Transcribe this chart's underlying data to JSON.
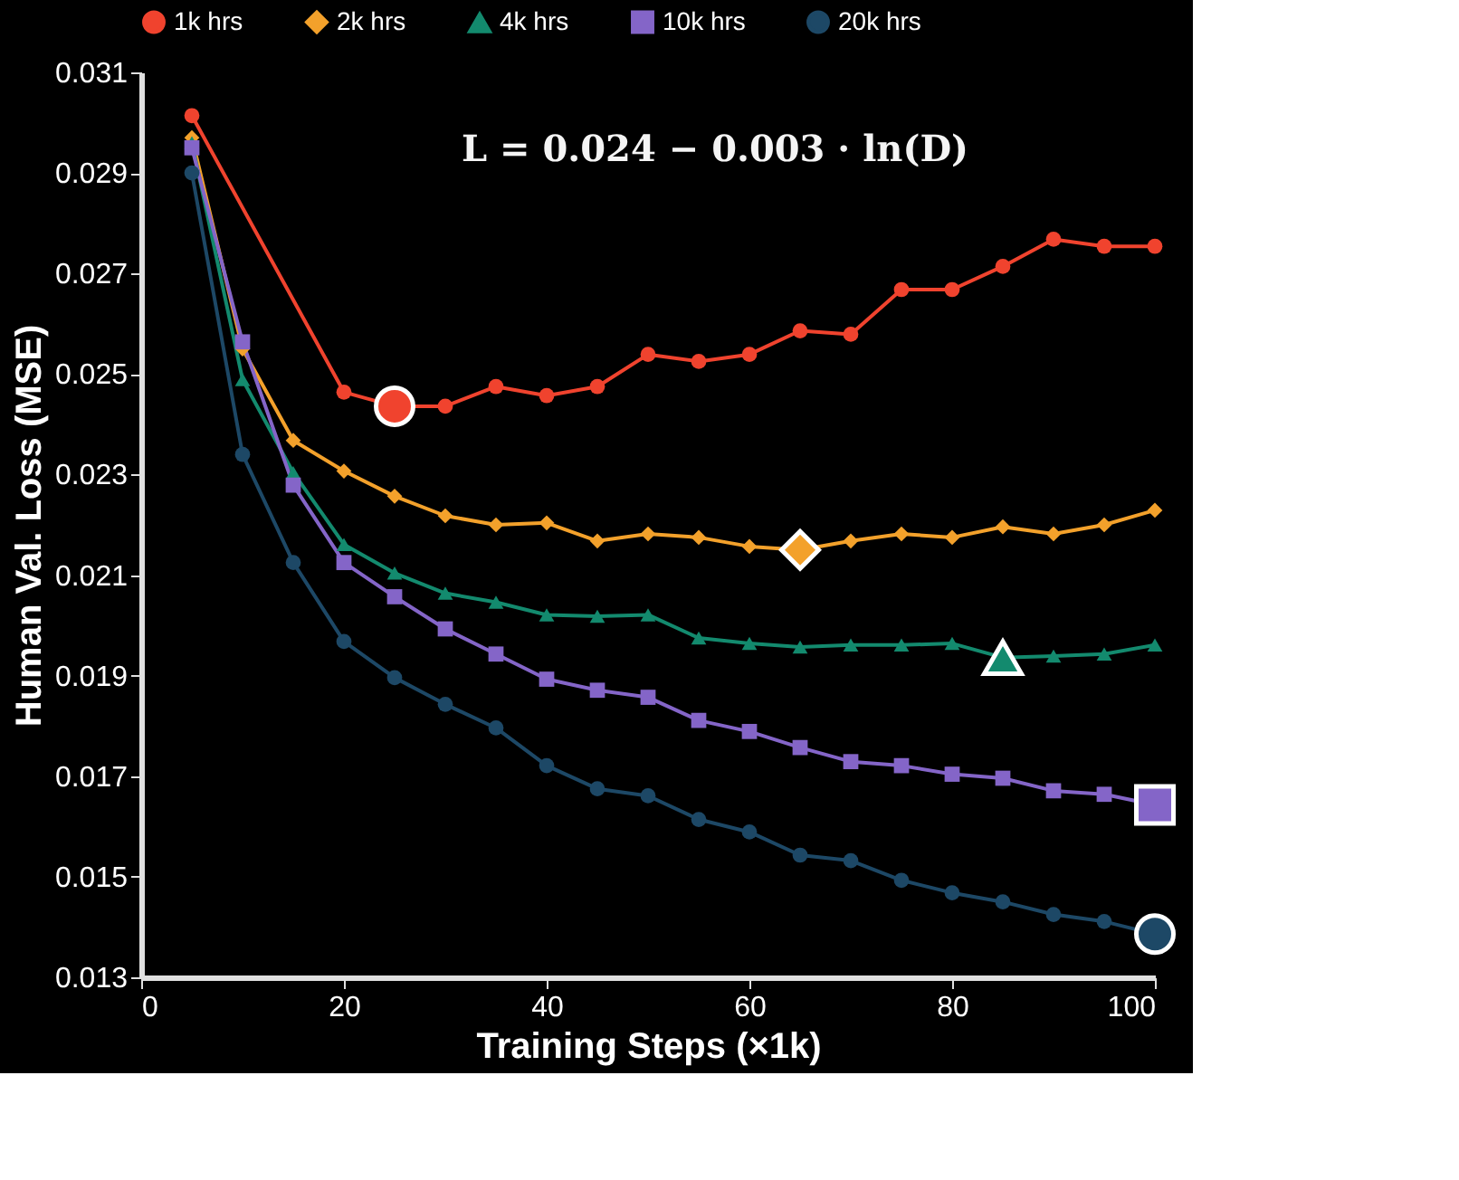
{
  "chart_data": {
    "type": "line",
    "xlabel": "Training Steps (×1k)",
    "ylabel": "Human Val. Loss (MSE)",
    "xlim": [
      0,
      100
    ],
    "xticks": [
      0,
      20,
      40,
      60,
      80,
      100
    ],
    "ylim": [
      0.013,
      0.031
    ],
    "yticks": [
      0.013,
      0.015,
      0.017,
      0.019,
      0.021,
      0.023,
      0.025,
      0.027,
      0.029,
      0.031
    ],
    "grid": false,
    "legend": "top",
    "line_style": "solid",
    "annotations": [
      "L = 0.024 − 0.003 · ln(D)"
    ],
    "series": [
      {
        "name": "1k hrs",
        "color": "#f0432e",
        "marker": "circle",
        "x": [
          5,
          20,
          25,
          30,
          35,
          40,
          45,
          50,
          55,
          60,
          65,
          70,
          75,
          80,
          85,
          90,
          95,
          100
        ],
        "values": [
          0.03014,
          0.02464,
          0.02436,
          0.02436,
          0.02475,
          0.02457,
          0.02475,
          0.02539,
          0.02525,
          0.02539,
          0.02586,
          0.02579,
          0.02668,
          0.02668,
          0.02714,
          0.02768,
          0.02754,
          0.02754
        ]
      },
      {
        "name": "2k hrs",
        "color": "#f3a12b",
        "marker": "diamond",
        "x": [
          5,
          10,
          15,
          20,
          25,
          30,
          35,
          40,
          45,
          50,
          55,
          60,
          65,
          70,
          75,
          80,
          85,
          90,
          95,
          100
        ],
        "values": [
          0.0297,
          0.0255,
          0.02368,
          0.02307,
          0.02257,
          0.02218,
          0.022,
          0.02204,
          0.02168,
          0.02182,
          0.02175,
          0.02157,
          0.0215,
          0.02168,
          0.02182,
          0.02175,
          0.02196,
          0.02182,
          0.022,
          0.02229
        ]
      },
      {
        "name": "4k hrs",
        "color": "#138a6e",
        "marker": "triangle",
        "x": [
          5,
          10,
          15,
          20,
          25,
          30,
          35,
          40,
          45,
          50,
          55,
          60,
          65,
          70,
          75,
          80,
          85,
          90,
          95,
          100
        ],
        "values": [
          0.0296,
          0.02489,
          0.02304,
          0.02161,
          0.02104,
          0.02064,
          0.02046,
          0.02021,
          0.02018,
          0.02021,
          0.01975,
          0.01964,
          0.01957,
          0.01961,
          0.01961,
          0.01964,
          0.01936,
          0.01939,
          0.01943,
          0.01961
        ]
      },
      {
        "name": "10k hrs",
        "color": "#8465c8",
        "marker": "square",
        "x": [
          5,
          10,
          15,
          20,
          25,
          30,
          35,
          40,
          45,
          50,
          55,
          60,
          65,
          70,
          75,
          80,
          85,
          90,
          95,
          100
        ],
        "values": [
          0.0295,
          0.02564,
          0.02279,
          0.02125,
          0.02057,
          0.01993,
          0.01943,
          0.01893,
          0.01871,
          0.01857,
          0.01811,
          0.01789,
          0.01757,
          0.01729,
          0.01721,
          0.01704,
          0.01696,
          0.01671,
          0.01664,
          0.01643
        ]
      },
      {
        "name": "20k hrs",
        "color": "#1d4866",
        "marker": "circle",
        "x": [
          5,
          10,
          15,
          20,
          25,
          30,
          35,
          40,
          45,
          50,
          55,
          60,
          65,
          70,
          75,
          80,
          85,
          90,
          95,
          100
        ],
        "values": [
          0.029,
          0.0234,
          0.02125,
          0.01968,
          0.01896,
          0.01843,
          0.01796,
          0.01721,
          0.01675,
          0.01661,
          0.01614,
          0.01589,
          0.01543,
          0.01532,
          0.01493,
          0.01468,
          0.0145,
          0.01425,
          0.01411,
          0.01386
        ]
      },
      {
        "type": "scatter",
        "color": "#f0432e",
        "marker": "circle",
        "x": [
          25
        ],
        "values": [
          0.02436
        ]
      },
      {
        "type": "scatter",
        "color": "#f3a12b",
        "marker": "diamond",
        "x": [
          65
        ],
        "values": [
          0.0215
        ]
      },
      {
        "type": "scatter",
        "color": "#138a6e",
        "marker": "triangle",
        "x": [
          85
        ],
        "values": [
          0.01936
        ]
      },
      {
        "type": "scatter",
        "color": "#8465c8",
        "marker": "square",
        "x": [
          100
        ],
        "values": [
          0.01643
        ]
      },
      {
        "type": "scatter",
        "color": "#1d4866",
        "marker": "circle",
        "x": [
          100
        ],
        "values": [
          0.01386
        ]
      }
    ]
  }
}
